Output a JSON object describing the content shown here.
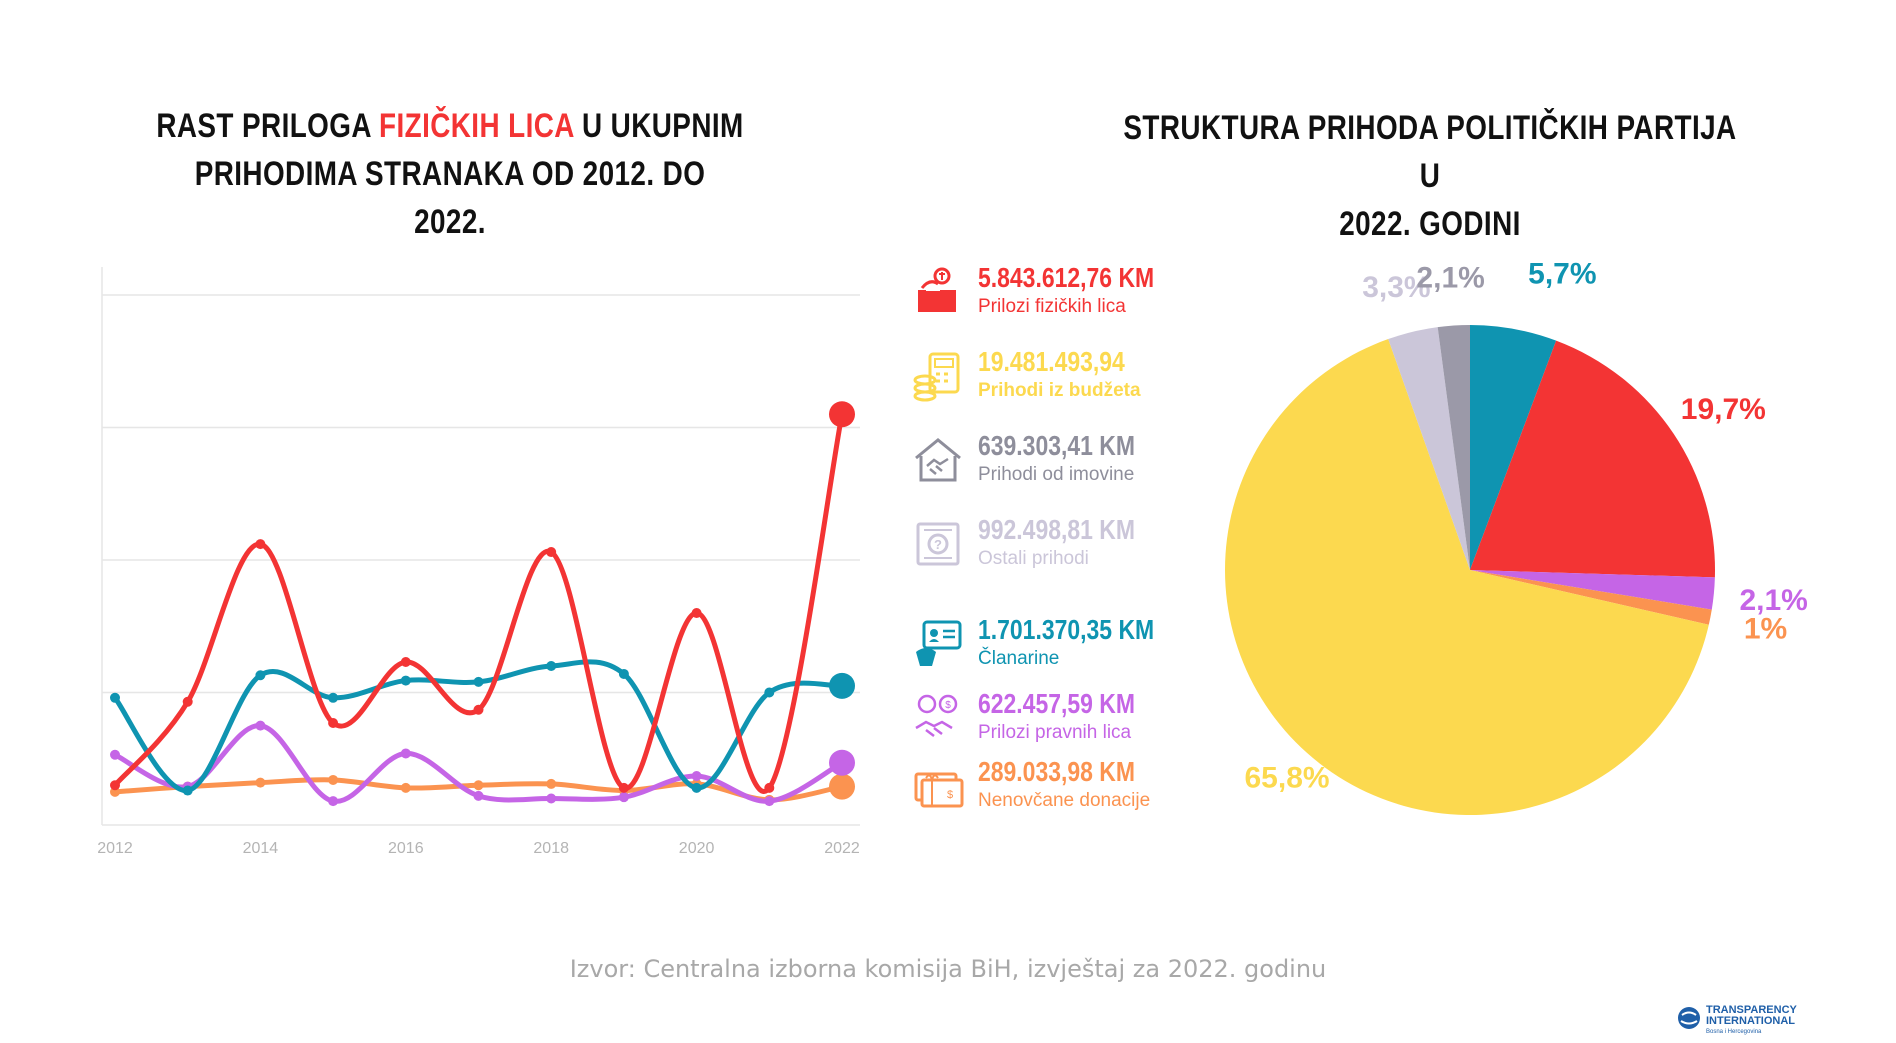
{
  "left_title": {
    "part1": "RAST PRILOGA ",
    "highlight": "FIZIČKIH LICA",
    "part2": " U UKUPNIM",
    "line2": "PRIHODIMA STRANAKA OD 2012. DO 2022."
  },
  "right_title": {
    "line1": "STRUKTURA PRIHODA POLITIČKIH PARTIJA U",
    "line2": "2022. GODINI"
  },
  "legend": [
    {
      "value": "5.843.612,76 KM",
      "label": "Prilozi fizičkih lica",
      "color": "#f33434",
      "icon": "donation-box-icon"
    },
    {
      "value": "19.481.493,94",
      "label": "Prihodi iz budžeta",
      "color": "#fcd94f",
      "icon": "calculator-coins-icon"
    },
    {
      "value": "639.303,41 KM",
      "label": "Prihodi od imovine",
      "color": "#8e8e9b",
      "icon": "house-handshake-icon"
    },
    {
      "value": "992.498,81 KM",
      "label": "Ostali prihodi",
      "color": "#cbc6d9",
      "icon": "question-document-icon"
    },
    {
      "value": "1.701.370,35 KM",
      "label": "Članarine",
      "color": "#0f94b1",
      "icon": "member-card-icon"
    },
    {
      "value": "622.457,59 KM",
      "label": "Prilozi pravnih lica",
      "color": "#c565e6",
      "icon": "handshake-chat-icon"
    },
    {
      "value": "289.033,98 KM",
      "label": "Nenovčane donacije",
      "color": "#fb9350",
      "icon": "gift-voucher-icon"
    }
  ],
  "source": "Izvor: Centralna izborna komisija BiH, izvještaj za 2022. godinu",
  "logo": {
    "line1": "TRANSPARENCY",
    "line2": "INTERNATIONAL",
    "sub": "Bosna i Hercegovina"
  },
  "chart_data": [
    {
      "type": "line",
      "x": [
        2012,
        2013,
        2014,
        2015,
        2016,
        2017,
        2018,
        2019,
        2020,
        2021,
        2022
      ],
      "x_tick_labels": [
        "2012",
        "2014",
        "2016",
        "2018",
        "2020",
        "2022"
      ],
      "ylim": [
        0,
        4
      ],
      "grid": true,
      "y_axis_labels_shown": false,
      "series": [
        {
          "name": "Prilozi fizičkih lica",
          "color": "#f33434",
          "values": [
            0.3,
            0.93,
            2.12,
            0.77,
            1.23,
            0.87,
            2.06,
            0.28,
            1.6,
            0.28,
            3.1
          ]
        },
        {
          "name": "Članarine",
          "color": "#0f94b1",
          "values": [
            0.96,
            0.26,
            1.13,
            0.96,
            1.09,
            1.08,
            1.2,
            1.14,
            0.28,
            1.0,
            1.05
          ]
        },
        {
          "name": "Prilozi pravnih lica",
          "color": "#c565e6",
          "values": [
            0.53,
            0.29,
            0.75,
            0.18,
            0.54,
            0.22,
            0.2,
            0.21,
            0.37,
            0.18,
            0.47
          ]
        },
        {
          "name": "Nenovčane donacije",
          "color": "#fb9350",
          "values": [
            0.25,
            0.29,
            0.32,
            0.34,
            0.28,
            0.3,
            0.31,
            0.26,
            0.31,
            0.19,
            0.29
          ]
        }
      ]
    },
    {
      "type": "pie",
      "slices": [
        {
          "label": "Članarine",
          "value": 5.7,
          "display": "5,7%",
          "color": "#0f94b1"
        },
        {
          "label": "Prilozi fizičkih lica",
          "value": 19.7,
          "display": "19,7%",
          "color": "#f33434"
        },
        {
          "label": "Prilozi pravnih lica",
          "value": 2.1,
          "display": "2,1%",
          "color": "#c565e6"
        },
        {
          "label": "Nenovčane donacije",
          "value": 1.0,
          "display": "1%",
          "color": "#fb9350"
        },
        {
          "label": "Prihodi iz budžeta",
          "value": 65.8,
          "display": "65,8%",
          "color": "#fcd94f"
        },
        {
          "label": "Ostali prihodi",
          "value": 3.3,
          "display": "3,3%",
          "color": "#cbc6d9"
        },
        {
          "label": "Prihodi od imovine",
          "value": 2.1,
          "display": "2,1%",
          "color": "#9b99a8"
        }
      ]
    }
  ]
}
